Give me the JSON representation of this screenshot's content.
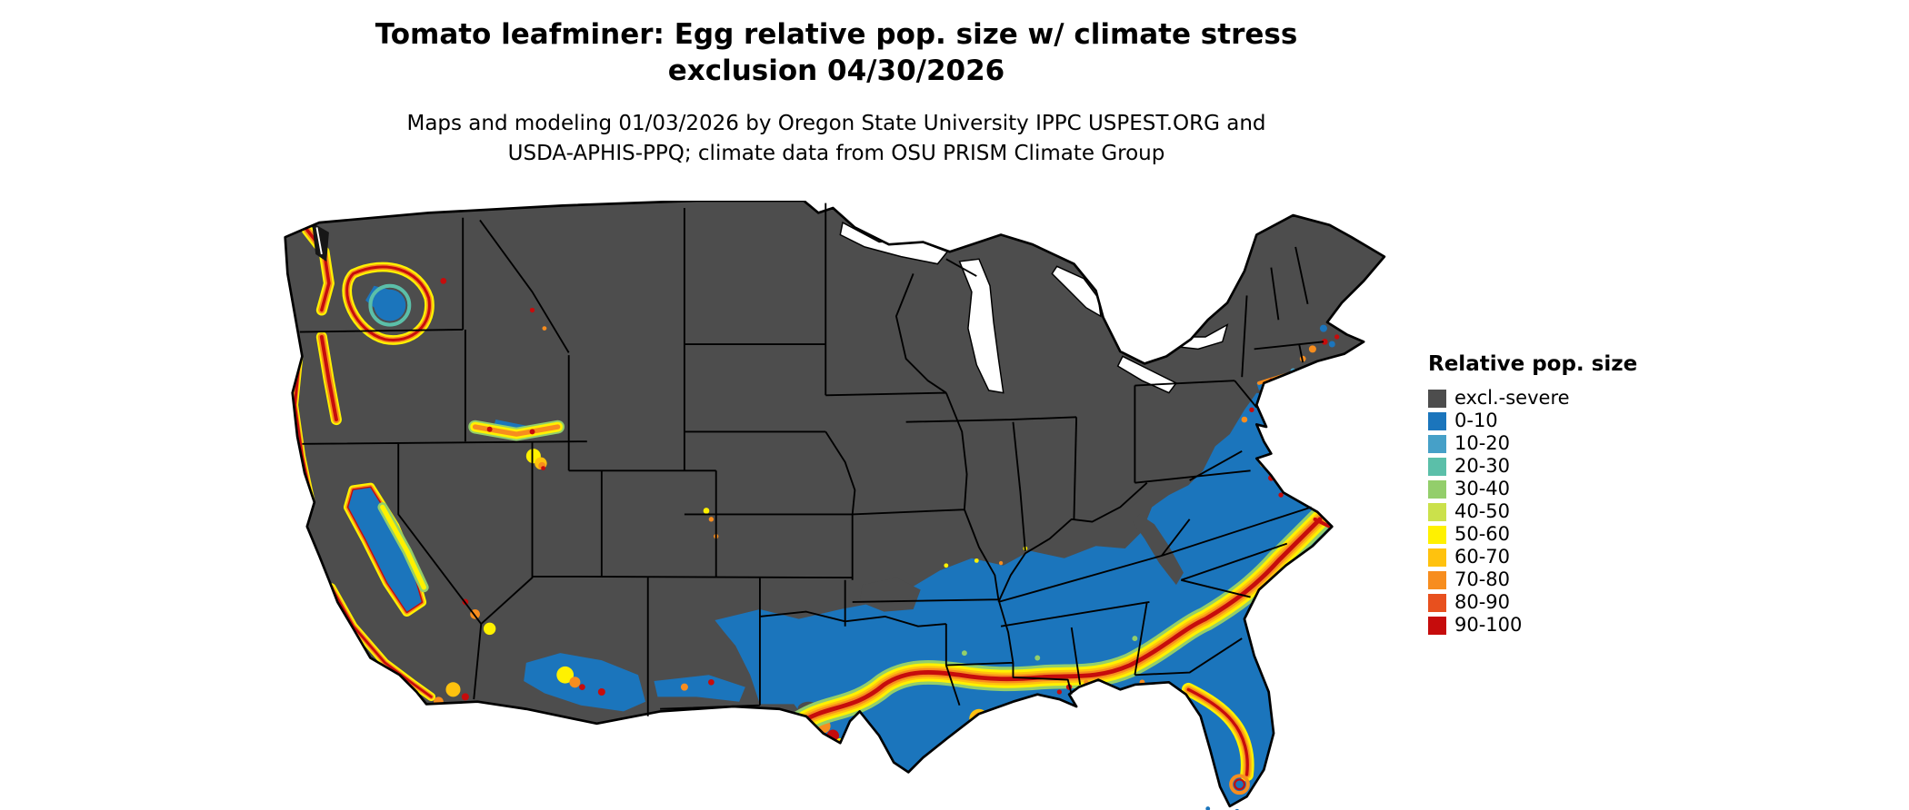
{
  "header": {
    "title_line1": "Tomato leafminer: Egg relative pop. size w/ climate stress",
    "title_line2": "exclusion 04/30/2026",
    "subtitle_line1": "Maps and modeling 01/03/2026 by Oregon State University IPPC USPEST.ORG and",
    "subtitle_line2": "USDA-APHIS-PPQ; climate data from OSU PRISM Climate Group"
  },
  "legend": {
    "title": "Relative pop. size",
    "items": [
      {
        "label": "excl.-severe",
        "color": "#4D4D4D"
      },
      {
        "label": "0-10",
        "color": "#1B75BC"
      },
      {
        "label": "10-20",
        "color": "#46A0C8"
      },
      {
        "label": "20-30",
        "color": "#5BBFA9"
      },
      {
        "label": "30-40",
        "color": "#93CE6B"
      },
      {
        "label": "40-50",
        "color": "#CBE14B"
      },
      {
        "label": "50-60",
        "color": "#FFF100"
      },
      {
        "label": "60-70",
        "color": "#FFC20E"
      },
      {
        "label": "70-80",
        "color": "#F78D1E"
      },
      {
        "label": "80-90",
        "color": "#E8501E"
      },
      {
        "label": "90-100",
        "color": "#C60C0C"
      }
    ]
  },
  "map": {
    "palette": {
      "excluded": "#4D4D4D",
      "blue": "#1B75BC",
      "teal": "#46A0C8",
      "tealgreen": "#5BBFA9",
      "green": "#93CE6B",
      "yellowgreen": "#CBE14B",
      "yellow": "#FFF100",
      "amber": "#FFC20E",
      "orange": "#F78D1E",
      "redorange": "#E8501E",
      "red": "#C60C0C"
    }
  }
}
